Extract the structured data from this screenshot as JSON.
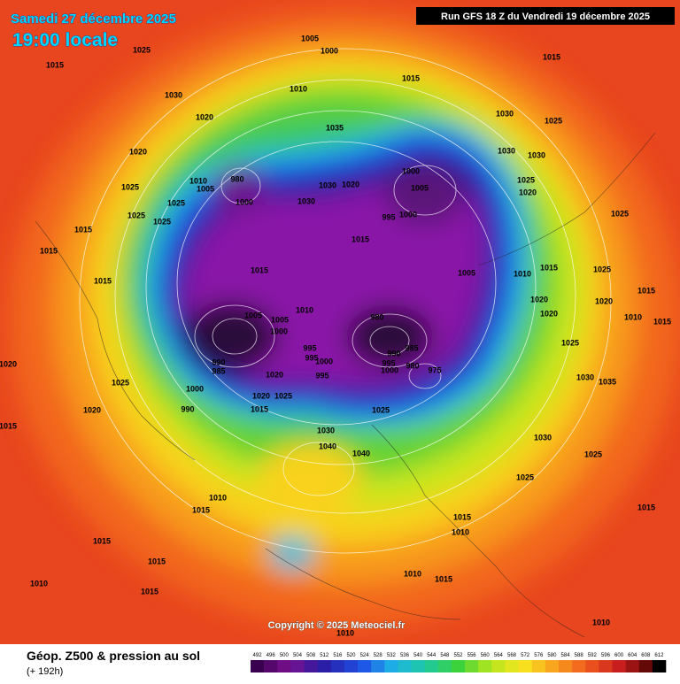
{
  "header": {
    "date": "Samedi 27 décembre 2025",
    "time": "19:00 locale",
    "run": "Run GFS 18 Z du Vendredi 19 décembre 2025"
  },
  "map": {
    "pressure_labels": [
      1005,
      1000,
      1025,
      1015,
      1015,
      1015,
      1030,
      1010,
      1020,
      1035,
      1030,
      1025,
      1020,
      1030,
      1030,
      1000,
      1025,
      1010,
      1005,
      980,
      1000,
      1030,
      1025,
      1030,
      1020,
      1005,
      995,
      1000,
      1025,
      1020,
      1025,
      1025,
      1015,
      1025,
      1015,
      1015,
      1015,
      1005,
      1015,
      1010,
      1025,
      1015,
      1015,
      1020,
      1005,
      1010,
      1005,
      1000,
      980,
      1020,
      1020,
      1010,
      1015,
      985,
      990,
      995,
      995,
      1000,
      990,
      985,
      995,
      1000,
      980,
      975,
      1025,
      1020,
      1025,
      1020,
      995,
      1000,
      1030,
      1035,
      1020,
      1025,
      990,
      1020,
      1015,
      1025,
      1015,
      1030,
      1040,
      1040,
      1030,
      1025,
      1025,
      1010,
      1015,
      1015,
      1010,
      1015,
      1015,
      1015,
      1010,
      1015,
      1010,
      1015,
      1010,
      1010
    ]
  },
  "copyright": "Copyright © 2025 Meteociel.fr",
  "footer": {
    "title": "Géop. Z500 & pression au sol",
    "lead": "(+ 192h)"
  },
  "colorbar": {
    "ticks": [
      492,
      496,
      500,
      504,
      508,
      512,
      516,
      520,
      524,
      528,
      532,
      536,
      540,
      544,
      548,
      552,
      556,
      560,
      564,
      568,
      572,
      576,
      580,
      584,
      588,
      592,
      596,
      600,
      604,
      608,
      612
    ]
  }
}
